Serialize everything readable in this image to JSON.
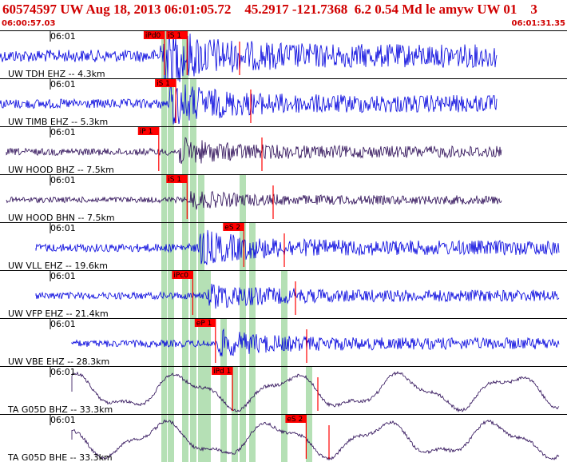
{
  "header": {
    "title": "60574597 UW Aug 18, 2013 06:01:05.72    45.2917 -121.7368  6.2 0.54 Md le amyw UW 01    3",
    "time_start": "06:00:57.03",
    "time_end": "06:01:31.35"
  },
  "colors": {
    "header_red": "#d00000",
    "trace_blue": "#0000dd",
    "trace_dark": "#2a0a55",
    "pick_red": "#ff0000",
    "window_green": "#b5e0b5"
  },
  "traces": [
    {
      "label": "UW TDH EHZ -- 4.3km",
      "time": "06:01",
      "color": "blue",
      "amp": 0.7,
      "picks": [
        {
          "t": 0.29,
          "label": "iPd0"
        },
        {
          "t": 0.33,
          "label": "iS 1"
        }
      ]
    },
    {
      "label": "UW TIMB EHZ -- 5.3km",
      "time": "06:01",
      "color": "blue",
      "amp": 0.5,
      "picks": [
        {
          "t": 0.31,
          "label": "iS 1"
        }
      ]
    },
    {
      "label": "UW HOOD BHZ -- 7.5km",
      "time": "06:01",
      "color": "dark",
      "amp": 0.3,
      "picks": [
        {
          "t": 0.28,
          "label": "iP 1"
        }
      ]
    },
    {
      "label": "UW HOOD BHN -- 7.5km",
      "time": "06:01",
      "color": "dark",
      "amp": 0.2,
      "picks": [
        {
          "t": 0.33,
          "label": "iS 1"
        }
      ]
    },
    {
      "label": "UW VLL EHZ -- 19.6km",
      "time": "06:01",
      "color": "blue",
      "amp": 0.4,
      "picks": [
        {
          "t": 0.43,
          "label": "eS 2"
        }
      ]
    },
    {
      "label": "UW VFP EHZ -- 21.4km",
      "time": "06:01",
      "color": "blue",
      "amp": 0.3,
      "picks": [
        {
          "t": 0.34,
          "label": "iPc0"
        }
      ]
    },
    {
      "label": "UW VBE EHZ -- 28.3km",
      "time": "06:01",
      "color": "blue",
      "amp": 0.3,
      "picks": [
        {
          "t": 0.38,
          "label": "eP 1"
        }
      ]
    },
    {
      "label": "TA G05D BHZ -- 33.3km",
      "time": "06:01",
      "color": "dark",
      "amp": 0.5,
      "picks": [
        {
          "t": 0.41,
          "label": "iPd 1"
        }
      ]
    },
    {
      "label": "TA G05D BHE -- 33.3km",
      "time": "06:01",
      "color": "dark",
      "amp": 0.6,
      "picks": [
        {
          "t": 0.54,
          "label": "eS 2"
        }
      ]
    }
  ]
}
